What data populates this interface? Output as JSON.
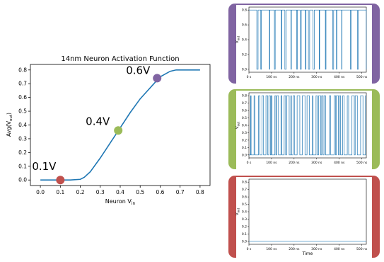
{
  "chart_data": [
    {
      "type": "line",
      "title": "14nm Neuron Activation Function",
      "xlabel": "Neuron V_in",
      "ylabel": "Avg(V_out)",
      "xlim": [
        -0.05,
        0.85
      ],
      "ylim": [
        -0.04,
        0.84
      ],
      "xticks": [
        "0.0",
        "0.1",
        "0.2",
        "0.3",
        "0.4",
        "0.5",
        "0.6",
        "0.7",
        "0.8"
      ],
      "yticks": [
        "0.0",
        "0.1",
        "0.2",
        "0.3",
        "0.4",
        "0.5",
        "0.6",
        "0.7",
        "0.8"
      ],
      "grid": false,
      "series": [
        {
          "color": "#1f77b4",
          "x": [
            0.0,
            0.05,
            0.1,
            0.15,
            0.2,
            0.22,
            0.25,
            0.3,
            0.35,
            0.4,
            0.45,
            0.5,
            0.55,
            0.6,
            0.65,
            0.68,
            0.7,
            0.75,
            0.8
          ],
          "y": [
            0.0,
            0.0,
            0.0,
            0.0,
            0.005,
            0.02,
            0.06,
            0.16,
            0.27,
            0.38,
            0.49,
            0.59,
            0.67,
            0.75,
            0.79,
            0.8,
            0.8,
            0.8,
            0.8
          ]
        }
      ],
      "annotations": [
        {
          "label": "0.1V",
          "x": 0.1,
          "y": 0.0,
          "color": "#c0504d"
        },
        {
          "label": "0.4V",
          "x": 0.39,
          "y": 0.36,
          "color": "#9bbb59"
        },
        {
          "label": "0.6V",
          "x": 0.585,
          "y": 0.74,
          "color": "#8064a2"
        }
      ]
    },
    {
      "type": "line",
      "panel": "top",
      "frame_color": "#8064a2",
      "ylabel": "V_out",
      "xticks": [
        "0 s",
        "100 ns",
        "200 ns",
        "300 ns",
        "400 ns",
        "500 ns"
      ],
      "yticks": [
        "0.0",
        "0.2",
        "0.4",
        "0.6",
        "0.8"
      ],
      "xlim": [
        0,
        520
      ],
      "ylim": [
        -0.04,
        0.84
      ],
      "series": [
        {
          "color": "#1f77b4",
          "x": [
            0,
            520
          ],
          "y": [
            0.8,
            0.8
          ]
        }
      ]
    },
    {
      "type": "line",
      "panel": "middle",
      "frame_color": "#9bbb59",
      "ylabel": "V_out",
      "xticks": [
        "0 s",
        "100 ns",
        "200 ns",
        "300 ns",
        "400 ns",
        "500 ns"
      ],
      "yticks": [
        "0.0",
        "0.1",
        "0.2",
        "0.3",
        "0.4",
        "0.5",
        "0.6",
        "0.7",
        "0.8"
      ],
      "xlim": [
        0,
        520
      ],
      "ylim": [
        -0.04,
        0.84
      ],
      "series": [
        {
          "color": "#1f77b4",
          "x": [
            0,
            520
          ],
          "y": [
            0.0,
            0.0
          ]
        }
      ]
    },
    {
      "type": "line",
      "panel": "bottom",
      "frame_color": "#c0504d",
      "xlabel": "Time",
      "ylabel": "V_out",
      "xticks": [
        "0 s",
        "100 ns",
        "200 ns",
        "300 ns",
        "400 ns",
        "500 ns"
      ],
      "yticks": [
        "0.0",
        "0.1",
        "0.2",
        "0.3",
        "0.4",
        "0.5",
        "0.6",
        "0.7",
        "0.8"
      ],
      "xlim": [
        0,
        520
      ],
      "ylim": [
        -0.04,
        0.84
      ],
      "series": [
        {
          "color": "#1f77b4",
          "x": [
            0,
            520
          ],
          "y": [
            0.0,
            0.0
          ]
        }
      ]
    }
  ]
}
